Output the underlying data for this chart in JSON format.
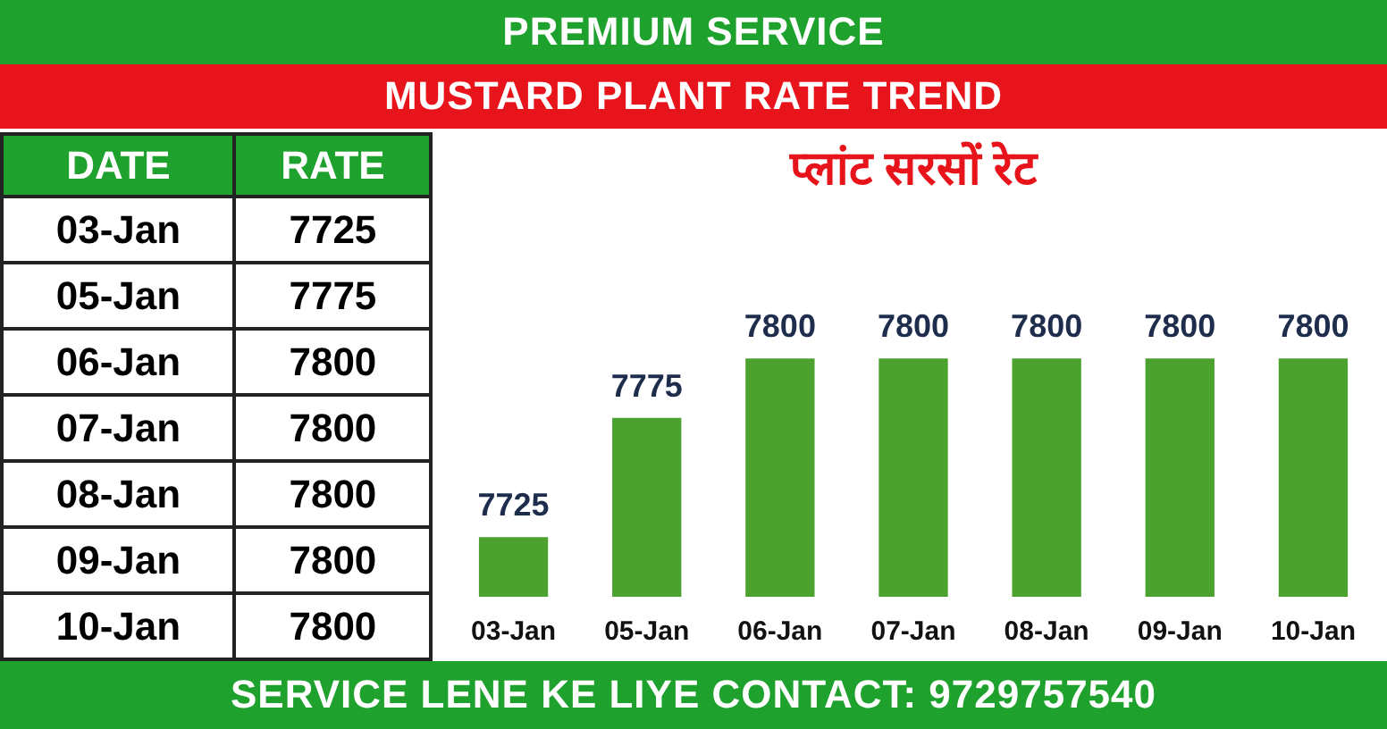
{
  "chart_data": [
    {
      "type": "other",
      "title": "PREMIUM SERVICE",
      "subtitle": "MUSTARD PLANT RATE TREND",
      "annotations": [
        "DATE",
        "RATE",
        "SERVICE LENE KE LIYE CONTACT: 9729757540"
      ],
      "categories": [
        "03-Jan",
        "05-Jan",
        "06-Jan",
        "07-Jan",
        "08-Jan",
        "09-Jan",
        "10-Jan"
      ],
      "values": [
        7725,
        7775,
        7800,
        7800,
        7800,
        7800,
        7800
      ],
      "data_labels": true
    },
    {
      "type": "bar",
      "title": "प्लांट सरसों रेट",
      "categories": [
        "03-Jan",
        "05-Jan",
        "06-Jan",
        "07-Jan",
        "08-Jan",
        "09-Jan",
        "10-Jan"
      ],
      "values": [
        7725,
        7775,
        7800,
        7800,
        7800,
        7800,
        7800
      ],
      "color": "#4ca22e",
      "data_labels": true
    }
  ]
}
